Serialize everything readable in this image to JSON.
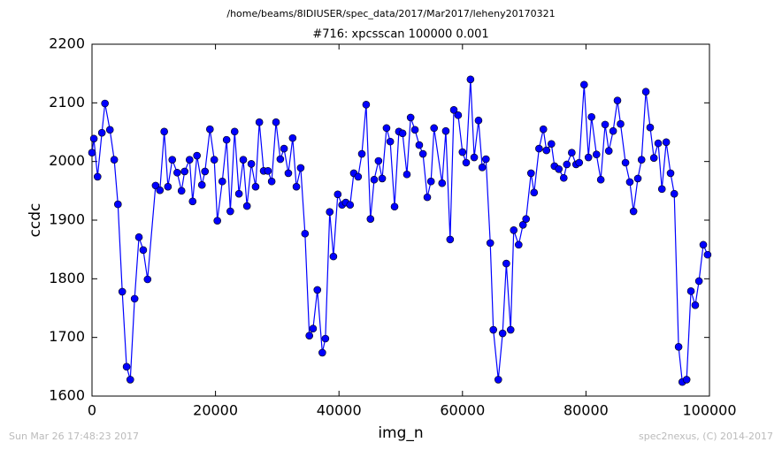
{
  "chart_data": {
    "type": "line",
    "suptitle": "/home/beams/8IDIUSER/spec_data/2017/Mar2017/leheny20170321",
    "title": "#716: xpcsscan 100000 0.001",
    "xlabel": "img_n",
    "ylabel": "ccdc",
    "footer_left": "Sun Mar 26 17:48:23 2017",
    "footer_right": "spec2nexus, (C) 2014-2017",
    "xlim": [
      0,
      100000
    ],
    "xticks": [
      0,
      20000,
      40000,
      60000,
      80000,
      100000
    ],
    "ylim": [
      1600,
      2200
    ],
    "yticks": [
      1600,
      1700,
      1800,
      1900,
      2000,
      2100,
      2200
    ],
    "grid": false,
    "marker": "circle",
    "x": [
      0,
      300,
      900,
      1600,
      2100,
      2900,
      3600,
      4200,
      4900,
      5600,
      6200,
      6900,
      7600,
      8300,
      9000,
      10300,
      11000,
      11700,
      12300,
      13000,
      13800,
      14500,
      15000,
      15800,
      16300,
      17000,
      17800,
      18300,
      19100,
      19800,
      20300,
      21100,
      21800,
      22400,
      23100,
      23800,
      24500,
      25100,
      25800,
      26500,
      27100,
      27800,
      28500,
      29100,
      29800,
      30500,
      31100,
      31800,
      32500,
      33100,
      33800,
      34500,
      35200,
      35800,
      36500,
      37300,
      37800,
      38500,
      39100,
      39800,
      40500,
      41100,
      41800,
      42400,
      43100,
      43700,
      44400,
      45100,
      45700,
      46400,
      47000,
      47700,
      48300,
      49000,
      49700,
      50300,
      51000,
      51600,
      52300,
      53000,
      53600,
      54300,
      54900,
      55400,
      56700,
      57300,
      58000,
      58600,
      59300,
      60000,
      60600,
      61300,
      61900,
      62600,
      63200,
      63800,
      64500,
      65000,
      65800,
      66500,
      67100,
      67800,
      68300,
      69100,
      69800,
      70300,
      71100,
      71600,
      72400,
      73100,
      73600,
      74400,
      74900,
      75600,
      76400,
      76900,
      77700,
      78400,
      78900,
      79700,
      80400,
      80900,
      81700,
      82400,
      83100,
      83700,
      84400,
      85100,
      85600,
      86400,
      87100,
      87700,
      88400,
      89000,
      89700,
      90400,
      91000,
      91700,
      92300,
      93000,
      93700,
      94300,
      95000,
      95600,
      96300,
      97000,
      97700,
      98300,
      99000,
      99700
    ],
    "series": [
      {
        "color": "#0000ff",
        "values": [
          2015,
          2039,
          1974,
          2049,
          2099,
          2054,
          2003,
          1927,
          1778,
          1650,
          1628,
          1766,
          1871,
          1849,
          1799,
          1959,
          1951,
          2051,
          1957,
          2003,
          1981,
          1950,
          1983,
          2003,
          1932,
          2010,
          1960,
          1983,
          2055,
          2003,
          1899,
          1966,
          2037,
          1915,
          2051,
          1945,
          2003,
          1924,
          1996,
          1957,
          2067,
          1984,
          1984,
          1966,
          2067,
          2004,
          2022,
          1980,
          2040,
          1957,
          1989,
          1877,
          1703,
          1715,
          1781,
          1674,
          1698,
          1914,
          1838,
          1944,
          1926,
          1930,
          1926,
          1980,
          1974,
          2013,
          2097,
          1902,
          1969,
          2001,
          1971,
          2057,
          2034,
          1923,
          2051,
          2048,
          1978,
          2075,
          2054,
          2028,
          2013,
          1939,
          1966,
          2057,
          1963,
          2052,
          1867,
          2088,
          2079,
          2016,
          1998,
          2140,
          2007,
          2070,
          1990,
          2004,
          1861,
          1713,
          1628,
          1707,
          1826,
          1713,
          1883,
          1858,
          1892,
          1902,
          1980,
          1947,
          2022,
          2055,
          2019,
          2030,
          1992,
          1987,
          1972,
          1995,
          2015,
          1995,
          1998,
          2131,
          2007,
          2076,
          2012,
          1969,
          2063,
          2018,
          2052,
          2104,
          2064,
          1998,
          1965,
          1915,
          1971,
          2003,
          2119,
          2058,
          2006,
          2031,
          1953,
          2033,
          1980,
          1945,
          1684,
          1624,
          1628,
          1779,
          1755,
          1796,
          1858,
          1841
        ]
      }
    ]
  }
}
